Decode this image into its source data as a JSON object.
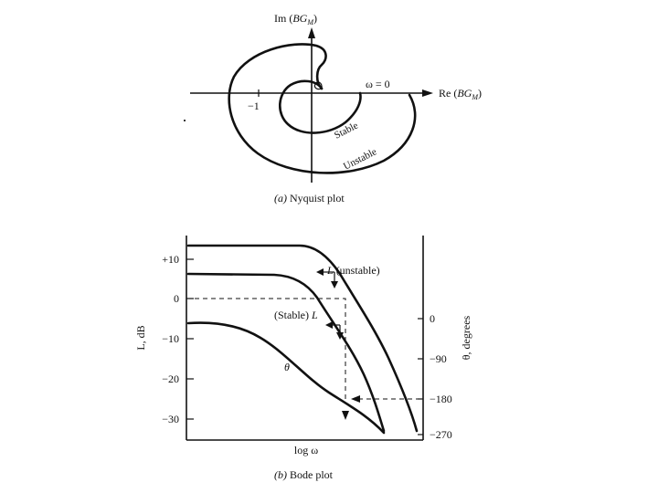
{
  "nyquist": {
    "im_axis_label": "Im (",
    "im_axis_func": "BG",
    "im_axis_sub": "M",
    "im_axis_close": ")",
    "re_axis_label": "Re (",
    "re_axis_func": "BG",
    "re_axis_sub": "M",
    "re_axis_close": ")",
    "minus_one": "−1",
    "omega_zero": "ω = 0",
    "stable_label": "Stable",
    "unstable_label": "Unstable",
    "caption_letter": "(a)",
    "caption_text": "Nyquist plot"
  },
  "bode": {
    "left_axis_label": "L, dB",
    "right_axis_label": "θ, degrees",
    "x_axis_label": "log ω",
    "left_ticks": [
      "+10",
      "0",
      "−10",
      "−20",
      "−30"
    ],
    "right_ticks": [
      "0",
      "−90",
      "−180",
      "−270"
    ],
    "unstable_text": "(unstable)",
    "unstable_L": "L",
    "stable_text": "(Stable)",
    "stable_L": "L",
    "theta_label": "θ",
    "caption_letter": "(b)",
    "caption_text": "Bode plot"
  }
}
